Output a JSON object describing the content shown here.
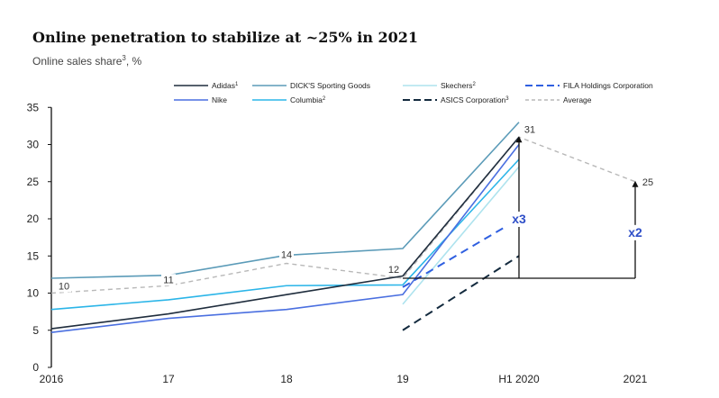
{
  "header": {
    "title": "Online penetration to stabilize at ~25% in 2021",
    "subtitle_main": "Online sales share",
    "subtitle_sup": "3",
    "subtitle_unit": ", %"
  },
  "colors": {
    "adidas": "#1f2d3d",
    "nike": "#4a6fe0",
    "dicks": "#5b9bb8",
    "columbia": "#2bb5e8",
    "skechers": "#aee3ee",
    "asics": "#132a3e",
    "fila": "#2f5fe0",
    "average": "#b8b8b8",
    "axis": "#111111",
    "annotation": "#2f4fc8"
  },
  "chart_data": {
    "type": "line",
    "x": [
      "2016",
      "17",
      "18",
      "19",
      "H1 2020",
      "2021"
    ],
    "ylim": [
      0,
      35
    ],
    "yticks": [
      0,
      5,
      10,
      15,
      20,
      25,
      30,
      35
    ],
    "grid": false,
    "legend_position": "top",
    "series": [
      {
        "key": "adidas",
        "name": "Adidas",
        "sup": "1",
        "dashed": false,
        "x": [
          0,
          1,
          2,
          3,
          4
        ],
        "values": [
          5.2,
          7.2,
          9.8,
          12.3,
          31
        ]
      },
      {
        "key": "nike",
        "name": "Nike",
        "sup": "",
        "dashed": false,
        "x": [
          0,
          1,
          2,
          3,
          4
        ],
        "values": [
          4.7,
          6.6,
          7.8,
          9.8,
          30
        ]
      },
      {
        "key": "dicks",
        "name": "DICK'S Sporting Goods",
        "sup": "",
        "dashed": false,
        "x": [
          0,
          1,
          2,
          3,
          4
        ],
        "values": [
          12,
          12.4,
          15.1,
          16,
          33
        ]
      },
      {
        "key": "columbia",
        "name": "Columbia",
        "sup": "2",
        "dashed": false,
        "x": [
          0,
          1,
          2,
          3,
          4
        ],
        "values": [
          7.8,
          9.1,
          11,
          11.1,
          28
        ]
      },
      {
        "key": "skechers",
        "name": "Skechers",
        "sup": "2",
        "dashed": false,
        "x": [
          3,
          4
        ],
        "values": [
          8.5,
          27
        ]
      },
      {
        "key": "asics",
        "name": "ASICS Corporation",
        "sup": "3",
        "dashed": true,
        "x": [
          3,
          4
        ],
        "values": [
          5,
          15
        ]
      },
      {
        "key": "fila",
        "name": "FILA Holdings Corporation",
        "sup": "",
        "dashed": true,
        "x": [
          3,
          4
        ],
        "values": [
          10.8,
          20
        ]
      },
      {
        "key": "average",
        "name": "Average",
        "sup": "",
        "dashed": true,
        "x": [
          0,
          1,
          2,
          3,
          4,
          5
        ],
        "values": [
          10,
          11,
          14,
          12,
          31,
          25
        ]
      }
    ],
    "avg_labels": [
      {
        "x": 0,
        "y": 10,
        "text": "10"
      },
      {
        "x": 1,
        "y": 11,
        "text": "11"
      },
      {
        "x": 2,
        "y": 14,
        "text": "14"
      },
      {
        "x": 3,
        "y": 12,
        "text": "12"
      },
      {
        "x": 4,
        "y": 31,
        "text": "31"
      },
      {
        "x": 5,
        "y": 25,
        "text": "25"
      }
    ],
    "reference_line": {
      "y": 12,
      "x_from": 3,
      "x_to": 5
    },
    "multipliers": [
      {
        "x": 4,
        "text": "x3"
      },
      {
        "x": 5,
        "text": "x2"
      }
    ]
  }
}
